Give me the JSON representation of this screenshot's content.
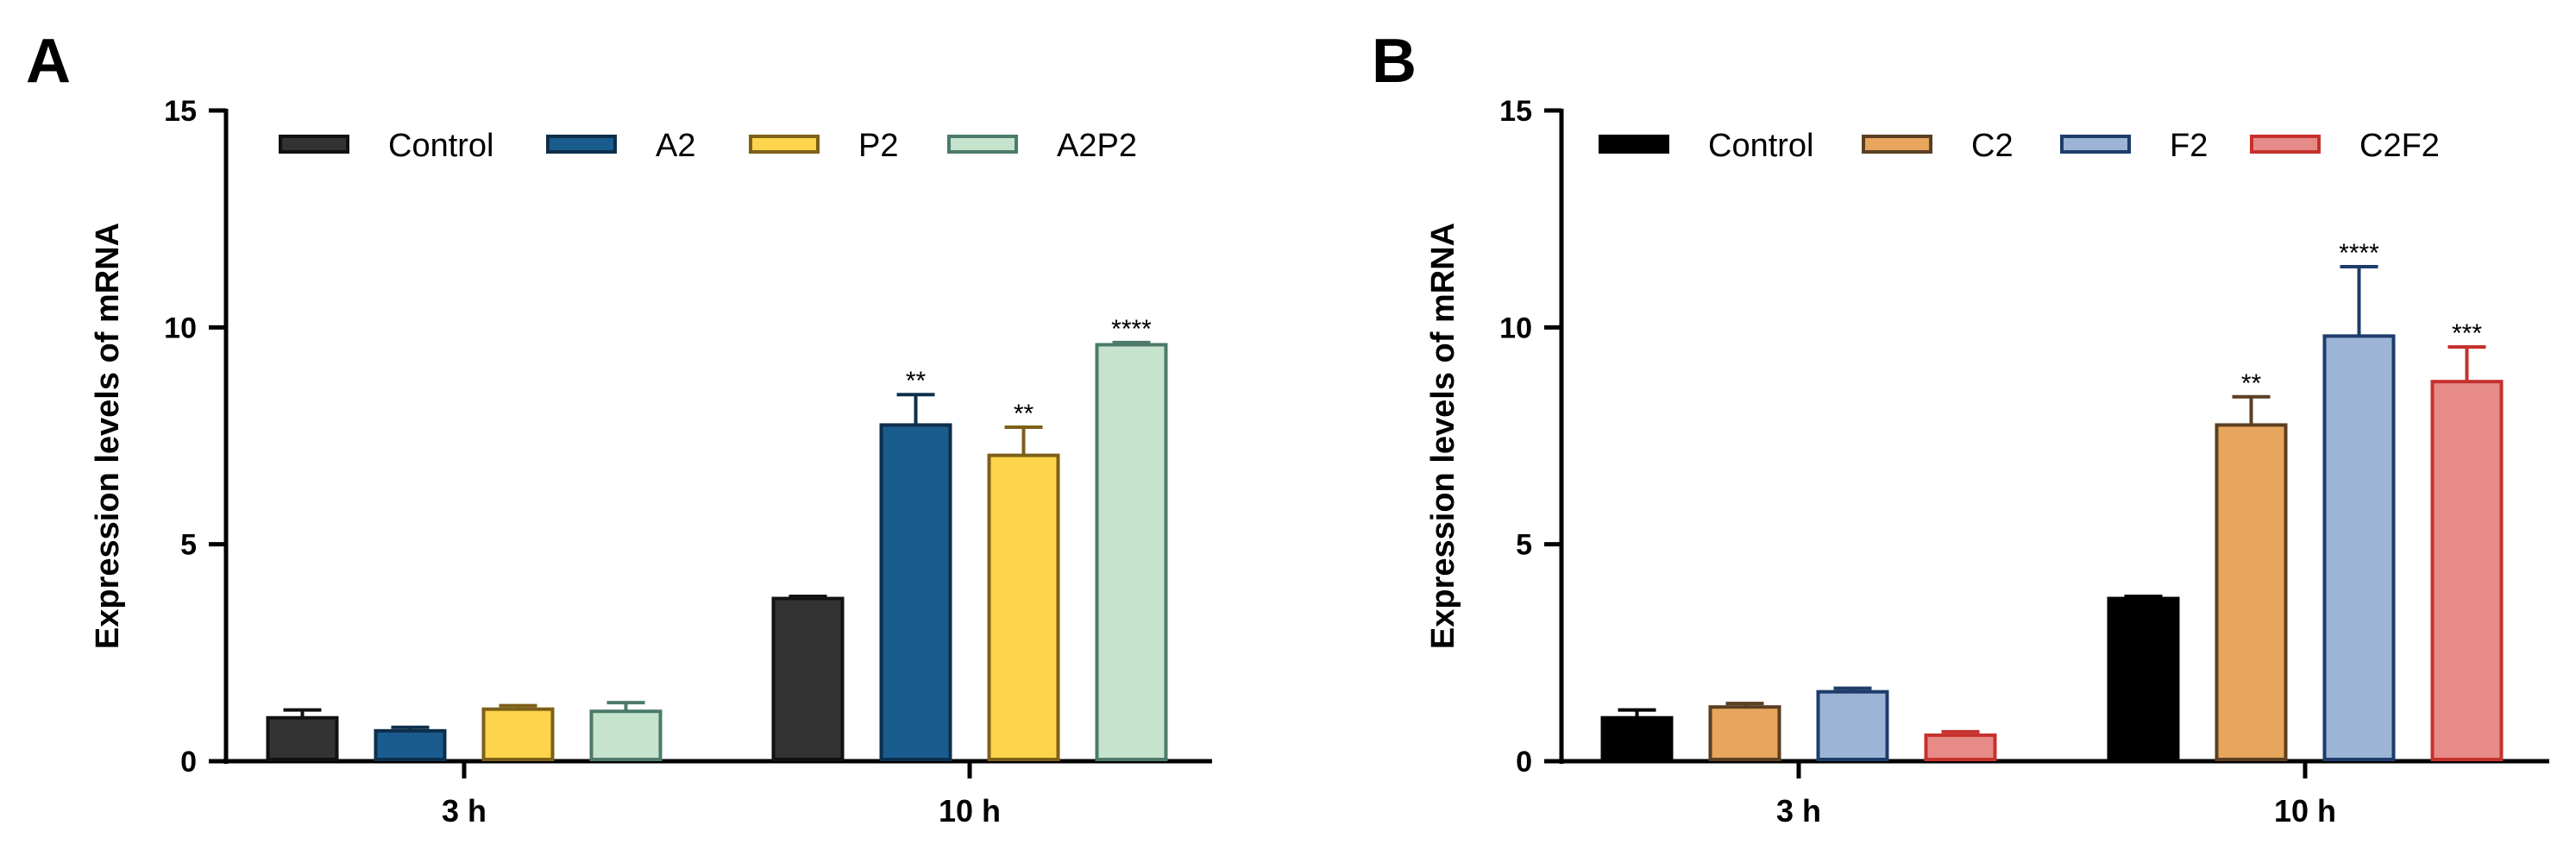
{
  "chart_data": [
    {
      "type": "bar",
      "panel_label": "A",
      "ylabel": "Expression levels of mRNA",
      "ylim": [
        0,
        15
      ],
      "yticks": [
        0,
        5,
        10,
        15
      ],
      "categories": [
        "3 h",
        "10 h"
      ],
      "legend_position": "top-left inside",
      "series": [
        {
          "name": "Control",
          "fill": "#333333",
          "stroke": "#111111",
          "values": [
            1.0,
            3.75
          ],
          "errors": [
            0.18,
            0.05
          ],
          "sig": [
            "",
            ""
          ]
        },
        {
          "name": "A2",
          "fill": "#1b5c8e",
          "stroke": "#0d2f4c",
          "values": [
            0.7,
            7.75
          ],
          "errors": [
            0.08,
            0.7
          ],
          "sig": [
            "",
            "**"
          ]
        },
        {
          "name": "P2",
          "fill": "#fdd44b",
          "stroke": "#7d6018",
          "values": [
            1.2,
            7.05
          ],
          "errors": [
            0.08,
            0.65
          ],
          "sig": [
            "",
            "**"
          ]
        },
        {
          "name": "A2P2",
          "fill": "#c6e3cd",
          "stroke": "#4d7a6b",
          "values": [
            1.15,
            9.6
          ],
          "errors": [
            0.2,
            0.05
          ],
          "sig": [
            "",
            "****"
          ]
        }
      ]
    },
    {
      "type": "bar",
      "panel_label": "B",
      "ylabel": "Expression levels of mRNA",
      "ylim": [
        0,
        15
      ],
      "yticks": [
        0,
        5,
        10,
        15
      ],
      "categories": [
        "3 h",
        "10 h"
      ],
      "legend_position": "top-left inside",
      "series": [
        {
          "name": "Control",
          "fill": "#000000",
          "stroke": "#000000",
          "values": [
            1.0,
            3.75
          ],
          "errors": [
            0.18,
            0.05
          ],
          "sig": [
            "",
            ""
          ]
        },
        {
          "name": "C2",
          "fill": "#e7a55d",
          "stroke": "#5a3f22",
          "values": [
            1.25,
            7.75
          ],
          "errors": [
            0.08,
            0.65
          ],
          "sig": [
            "",
            "**"
          ]
        },
        {
          "name": "F2",
          "fill": "#9cb4d6",
          "stroke": "#1e3c6b",
          "values": [
            1.6,
            9.8
          ],
          "errors": [
            0.08,
            1.6
          ],
          "sig": [
            "",
            "****"
          ]
        },
        {
          "name": "C2F2",
          "fill": "#e68b87",
          "stroke": "#c6312d",
          "values": [
            0.6,
            8.75
          ],
          "errors": [
            0.08,
            0.8
          ],
          "sig": [
            "",
            "***"
          ]
        }
      ]
    }
  ]
}
